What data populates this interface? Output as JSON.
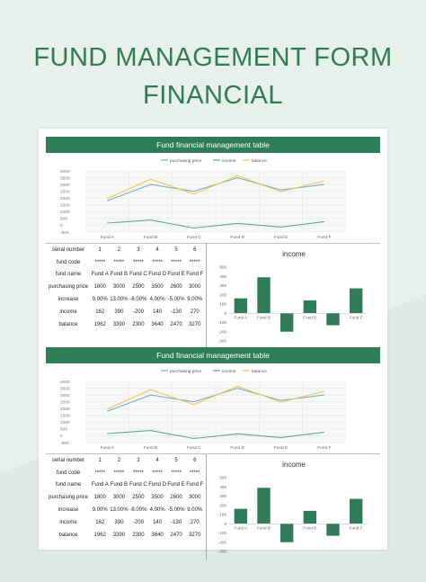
{
  "heading": {
    "line1": "FUND MANAGEMENT FORM",
    "line2": "FINANCIAL"
  },
  "colors": {
    "accent": "#2e7d57",
    "purchasing": "#7aaed0",
    "income": "#5ea98a",
    "balance": "#f2c84b",
    "bar": "#2e7d57"
  },
  "blocks": [
    {
      "band_title": "Fund financial management table",
      "table": [
        {
          "label": "serial number",
          "cells": [
            "1",
            "2",
            "3",
            "4",
            "5",
            "6"
          ]
        },
        {
          "label": "fund code",
          "cells": [
            "*****",
            "*****",
            "*****",
            "*****",
            "*****",
            "*****"
          ]
        },
        {
          "label": "fund name",
          "cells": [
            "Fund A",
            "Fund B",
            "Fund C",
            "Fund D",
            "Fund E",
            "Fund F"
          ]
        },
        {
          "label": "purchasing price",
          "cells": [
            "1800",
            "3000",
            "2500",
            "3500",
            "2600",
            "3000"
          ]
        },
        {
          "label": "increase",
          "cells": [
            "9.00%",
            "13.00%",
            "-8.00%",
            "4.00%",
            "-5.00%",
            "9.00%"
          ]
        },
        {
          "label": "income",
          "cells": [
            "162",
            "390",
            "-200",
            "140",
            "-130",
            "270"
          ]
        },
        {
          "label": "balance",
          "cells": [
            "1962",
            "3390",
            "2300",
            "3640",
            "2470",
            "3270"
          ]
        }
      ]
    },
    {
      "band_title": "Fund financial management table",
      "table": [
        {
          "label": "serial number",
          "cells": [
            "1",
            "2",
            "3",
            "4",
            "5",
            "6"
          ]
        },
        {
          "label": "fund code",
          "cells": [
            "*****",
            "*****",
            "*****",
            "*****",
            "*****",
            "*****"
          ]
        },
        {
          "label": "fund name",
          "cells": [
            "Fund A",
            "Fund B",
            "Fund C",
            "Fund D",
            "Fund E",
            "Fund F"
          ]
        },
        {
          "label": "purchasing price",
          "cells": [
            "1800",
            "3000",
            "2500",
            "3500",
            "2600",
            "3000"
          ]
        },
        {
          "label": "increase",
          "cells": [
            "9.00%",
            "13.00%",
            "-8.00%",
            "4.00%",
            "-5.00%",
            "9.00%"
          ]
        },
        {
          "label": "income",
          "cells": [
            "162",
            "390",
            "-200",
            "140",
            "-130",
            "270"
          ]
        },
        {
          "label": "balance",
          "cells": [
            "1962",
            "3390",
            "2300",
            "3640",
            "2470",
            "3270"
          ]
        }
      ]
    }
  ],
  "chart_data": [
    {
      "type": "line",
      "categories": [
        "Fund A",
        "Fund B",
        "Fund C",
        "Fund D",
        "Fund E",
        "Fund F"
      ],
      "series": [
        {
          "name": "purchasing price",
          "values": [
            1800,
            3000,
            2500,
            3500,
            2600,
            3000
          ]
        },
        {
          "name": "income",
          "values": [
            162,
            390,
            -200,
            140,
            -130,
            270
          ]
        },
        {
          "name": "balance",
          "values": [
            1962,
            3390,
            2300,
            3640,
            2470,
            3270
          ]
        }
      ],
      "yticks": [
        "4000",
        "3500",
        "3000",
        "2500",
        "2000",
        "1500",
        "1000",
        "500",
        "0",
        "-500"
      ],
      "ylim": [
        -500,
        4000
      ],
      "legend": "top-center",
      "grid": true
    },
    {
      "type": "bar",
      "title": "income",
      "categories": [
        "Fund A",
        "Fund B",
        "Fund C",
        "Fund D",
        "Fund E",
        "Fund F"
      ],
      "values": [
        162,
        390,
        -200,
        140,
        -130,
        270
      ],
      "yticks": [
        "500",
        "400",
        "300",
        "200",
        "100",
        "0",
        "-100",
        "-200",
        "-300"
      ],
      "ylim": [
        -300,
        500
      ]
    },
    {
      "type": "line",
      "categories": [
        "Fund A",
        "Fund B",
        "Fund C",
        "Fund D",
        "Fund E",
        "Fund F"
      ],
      "series": [
        {
          "name": "purchasing price",
          "values": [
            1800,
            3000,
            2500,
            3500,
            2600,
            3000
          ]
        },
        {
          "name": "income",
          "values": [
            162,
            390,
            -200,
            140,
            -130,
            270
          ]
        },
        {
          "name": "balance",
          "values": [
            1962,
            3390,
            2300,
            3640,
            2470,
            3270
          ]
        }
      ],
      "yticks": [
        "4000",
        "3500",
        "3000",
        "2500",
        "2000",
        "1500",
        "1000",
        "500",
        "0",
        "-500"
      ],
      "ylim": [
        -500,
        4000
      ],
      "legend": "top-center",
      "grid": true
    },
    {
      "type": "bar",
      "title": "income",
      "categories": [
        "Fund A",
        "Fund B",
        "Fund C",
        "Fund D",
        "Fund E",
        "Fund F"
      ],
      "values": [
        162,
        390,
        -200,
        140,
        -130,
        270
      ],
      "yticks": [
        "500",
        "400",
        "300",
        "200",
        "100",
        "0",
        "-100",
        "-200",
        "-300"
      ],
      "ylim": [
        -300,
        500
      ]
    }
  ]
}
